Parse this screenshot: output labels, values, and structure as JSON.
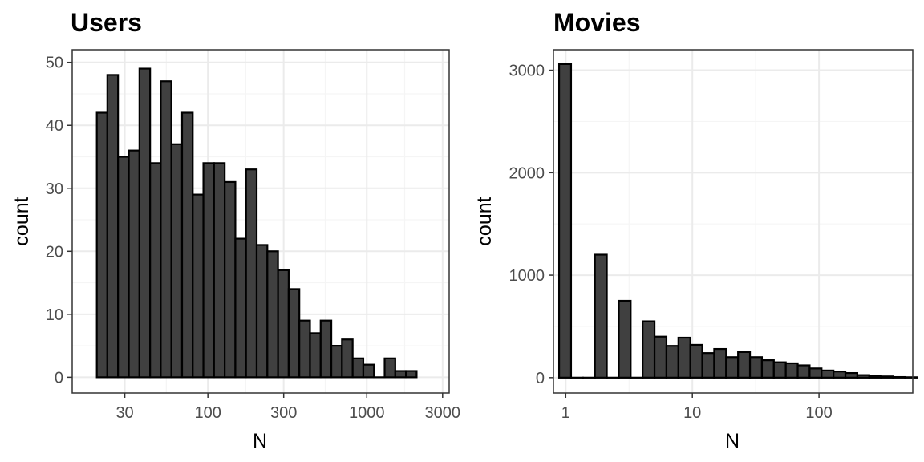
{
  "chart_data": [
    {
      "type": "bar",
      "title": "Users",
      "xlabel": "N",
      "ylabel": "count",
      "x_scale": "log10",
      "xlim": [
        14,
        3300
      ],
      "ylim": [
        -2.5,
        52
      ],
      "x_ticks": [
        30,
        100,
        300,
        1000,
        3000
      ],
      "x_tick_labels": [
        "30",
        "100",
        "300",
        "1000",
        "3000"
      ],
      "y_ticks": [
        0,
        10,
        20,
        30,
        40,
        50
      ],
      "y_tick_labels": [
        "0",
        "10",
        "20",
        "30",
        "40",
        "50"
      ],
      "grid": true,
      "bins": [
        {
          "x0": 20.0,
          "x1": 23.3,
          "count": 42
        },
        {
          "x0": 23.3,
          "x1": 27.2,
          "count": 48
        },
        {
          "x0": 27.2,
          "x1": 31.8,
          "count": 35
        },
        {
          "x0": 31.8,
          "x1": 37.1,
          "count": 36
        },
        {
          "x0": 37.1,
          "x1": 43.3,
          "count": 49
        },
        {
          "x0": 43.3,
          "x1": 50.5,
          "count": 34
        },
        {
          "x0": 50.5,
          "x1": 58.9,
          "count": 47
        },
        {
          "x0": 58.9,
          "x1": 68.8,
          "count": 37
        },
        {
          "x0": 68.8,
          "x1": 80.3,
          "count": 42
        },
        {
          "x0": 80.3,
          "x1": 93.7,
          "count": 29
        },
        {
          "x0": 93.7,
          "x1": 109.3,
          "count": 34
        },
        {
          "x0": 109.3,
          "x1": 127.6,
          "count": 34
        },
        {
          "x0": 127.6,
          "x1": 148.9,
          "count": 31
        },
        {
          "x0": 148.9,
          "x1": 173.8,
          "count": 22
        },
        {
          "x0": 173.8,
          "x1": 202.8,
          "count": 33
        },
        {
          "x0": 202.8,
          "x1": 236.7,
          "count": 21
        },
        {
          "x0": 236.7,
          "x1": 276.3,
          "count": 20
        },
        {
          "x0": 276.3,
          "x1": 322.4,
          "count": 17
        },
        {
          "x0": 322.4,
          "x1": 376.3,
          "count": 14
        },
        {
          "x0": 376.3,
          "x1": 439.2,
          "count": 9
        },
        {
          "x0": 439.2,
          "x1": 512.5,
          "count": 7
        },
        {
          "x0": 512.5,
          "x1": 598.2,
          "count": 9
        },
        {
          "x0": 598.2,
          "x1": 698.1,
          "count": 5
        },
        {
          "x0": 698.1,
          "x1": 814.7,
          "count": 6
        },
        {
          "x0": 814.7,
          "x1": 950.9,
          "count": 3
        },
        {
          "x0": 950.9,
          "x1": 1109.7,
          "count": 2
        },
        {
          "x0": 1109.7,
          "x1": 1295.1,
          "count": 0
        },
        {
          "x0": 1295.1,
          "x1": 1511.5,
          "count": 3
        },
        {
          "x0": 1511.5,
          "x1": 1764.1,
          "count": 1
        },
        {
          "x0": 1764.1,
          "x1": 2058.8,
          "count": 1
        }
      ]
    },
    {
      "type": "bar",
      "title": "Movies",
      "xlabel": "N",
      "ylabel": "count",
      "x_scale": "log10",
      "xlim": [
        0.8,
        550
      ],
      "ylim": [
        -150,
        3200
      ],
      "x_ticks": [
        1,
        10,
        100
      ],
      "x_tick_labels": [
        "1",
        "10",
        "100"
      ],
      "y_ticks": [
        0,
        1000,
        2000,
        3000
      ],
      "y_tick_labels": [
        "0",
        "1000",
        "2000",
        "3000"
      ],
      "grid": true,
      "bins": [
        {
          "x0": 0.887,
          "x1": 1.102,
          "count": 3060
        },
        {
          "x0": 1.102,
          "x1": 1.369,
          "count": 0
        },
        {
          "x0": 1.369,
          "x1": 1.7,
          "count": 0
        },
        {
          "x0": 1.7,
          "x1": 2.112,
          "count": 1200
        },
        {
          "x0": 2.112,
          "x1": 2.624,
          "count": 0
        },
        {
          "x0": 2.624,
          "x1": 3.259,
          "count": 750
        },
        {
          "x0": 3.259,
          "x1": 4.048,
          "count": 0
        },
        {
          "x0": 4.048,
          "x1": 5.029,
          "count": 550
        },
        {
          "x0": 5.029,
          "x1": 6.247,
          "count": 400
        },
        {
          "x0": 6.247,
          "x1": 7.76,
          "count": 310
        },
        {
          "x0": 7.76,
          "x1": 9.64,
          "count": 390
        },
        {
          "x0": 9.64,
          "x1": 11.975,
          "count": 320
        },
        {
          "x0": 11.975,
          "x1": 14.875,
          "count": 240
        },
        {
          "x0": 14.875,
          "x1": 18.478,
          "count": 280
        },
        {
          "x0": 18.478,
          "x1": 22.953,
          "count": 200
        },
        {
          "x0": 22.953,
          "x1": 28.513,
          "count": 250
        },
        {
          "x0": 28.513,
          "x1": 35.419,
          "count": 200
        },
        {
          "x0": 35.419,
          "x1": 43.998,
          "count": 170
        },
        {
          "x0": 43.998,
          "x1": 54.655,
          "count": 150
        },
        {
          "x0": 54.655,
          "x1": 67.893,
          "count": 140
        },
        {
          "x0": 67.893,
          "x1": 84.337,
          "count": 120
        },
        {
          "x0": 84.337,
          "x1": 104.764,
          "count": 90
        },
        {
          "x0": 104.764,
          "x1": 130.139,
          "count": 70
        },
        {
          "x0": 130.139,
          "x1": 161.661,
          "count": 60
        },
        {
          "x0": 161.661,
          "x1": 200.817,
          "count": 45
        },
        {
          "x0": 200.817,
          "x1": 249.457,
          "count": 25
        },
        {
          "x0": 249.457,
          "x1": 309.879,
          "count": 18
        },
        {
          "x0": 309.879,
          "x1": 384.937,
          "count": 12
        },
        {
          "x0": 384.937,
          "x1": 478.176,
          "count": 6
        },
        {
          "x0": 478.176,
          "x1": 594.0,
          "count": 4
        }
      ]
    }
  ],
  "colors": {
    "bar_fill": "#404040",
    "bar_stroke": "#000000",
    "panel_border": "#333333",
    "grid_major": "#ebebeb",
    "grid_minor": "#f5f5f5",
    "tick_text": "#4d4d4d"
  }
}
